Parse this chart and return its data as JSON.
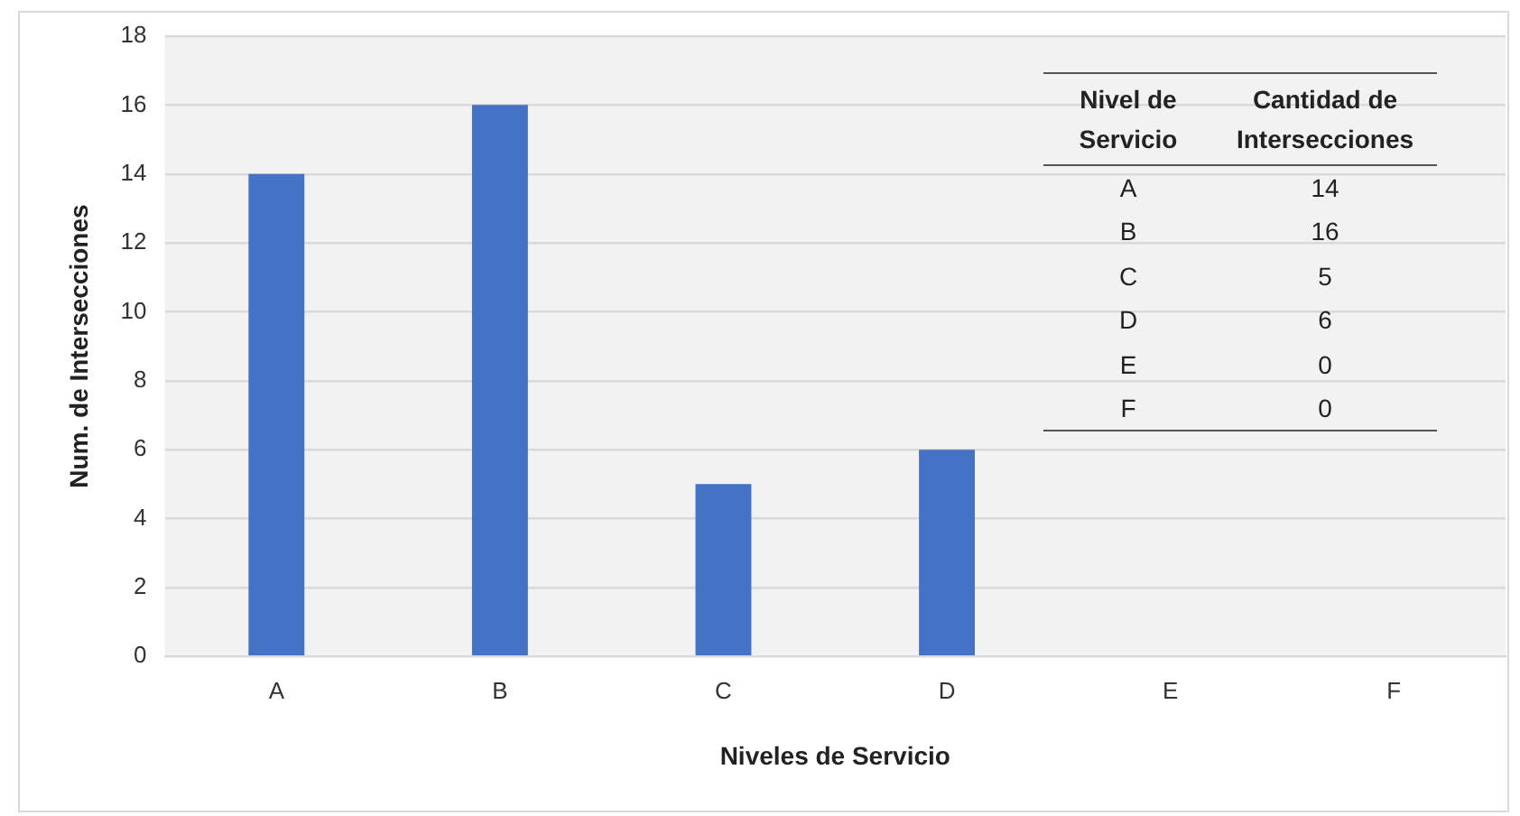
{
  "chart_data": {
    "type": "bar",
    "xlabel": "Niveles de Servicio",
    "ylabel": "Num. de Intersecciones",
    "categories": [
      "A",
      "B",
      "C",
      "D",
      "E",
      "F"
    ],
    "values": [
      14,
      16,
      5,
      6,
      0,
      0
    ],
    "color": "#4472c4",
    "ylim": [
      0,
      18
    ],
    "yticks": [
      0,
      2,
      4,
      6,
      8,
      10,
      12,
      14,
      16,
      18
    ],
    "grid": "y",
    "legend": false,
    "annotations": [
      "Nivel de Servicio",
      "Cantidad de Intersecciones",
      "14",
      "16",
      "5",
      "6",
      "0",
      "0"
    ]
  }
}
